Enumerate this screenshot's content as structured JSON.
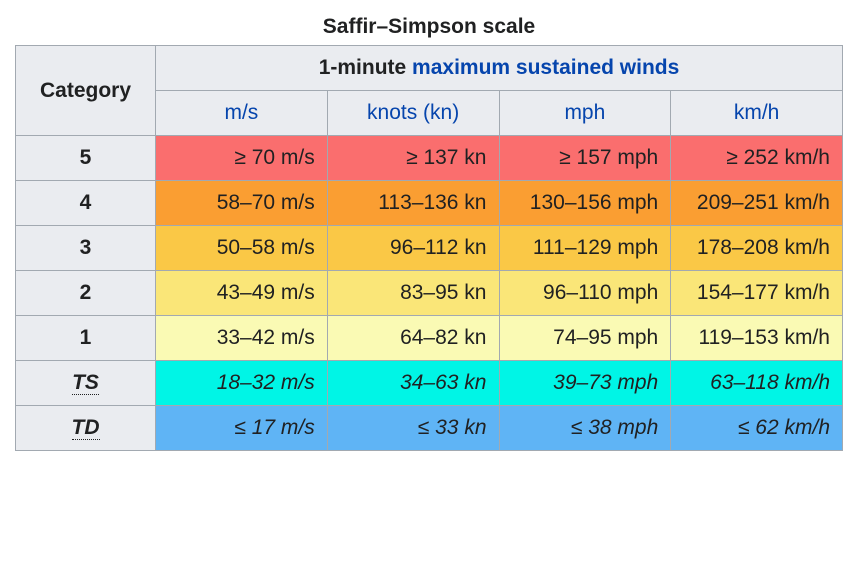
{
  "title": "Saffir–Simpson scale",
  "header": {
    "category": "Category",
    "main_prefix": "1-minute ",
    "main_link": "maximum sustained winds"
  },
  "unit_headers": [
    "m/s",
    "knots (kn)",
    "mph",
    "km/h"
  ],
  "colors": {
    "cat5": "#fa6e6e",
    "cat4": "#fa9e32",
    "cat3": "#fac846",
    "cat2": "#fae678",
    "cat1": "#fafab4",
    "ts": "#00f5e6",
    "td": "#5fb4f5",
    "header_bg": "#eaecf0",
    "border": "#a2a9b1",
    "text": "#202122",
    "link": "#0645ad"
  },
  "rows": [
    {
      "label": "5",
      "color_key": "cat5",
      "italic": false,
      "dotted": false,
      "values": [
        "≥ 70 m/s",
        "≥ 137 kn",
        "≥ 157 mph",
        "≥ 252 km/h"
      ]
    },
    {
      "label": "4",
      "color_key": "cat4",
      "italic": false,
      "dotted": false,
      "values": [
        "58–70 m/s",
        "113–136 kn",
        "130–156 mph",
        "209–251 km/h"
      ]
    },
    {
      "label": "3",
      "color_key": "cat3",
      "italic": false,
      "dotted": false,
      "values": [
        "50–58 m/s",
        "96–112 kn",
        "111–129 mph",
        "178–208 km/h"
      ]
    },
    {
      "label": "2",
      "color_key": "cat2",
      "italic": false,
      "dotted": false,
      "values": [
        "43–49 m/s",
        "83–95 kn",
        "96–110 mph",
        "154–177 km/h"
      ]
    },
    {
      "label": "1",
      "color_key": "cat1",
      "italic": false,
      "dotted": false,
      "values": [
        "33–42 m/s",
        "64–82 kn",
        "74–95 mph",
        "119–153 km/h"
      ]
    },
    {
      "label": "TS",
      "color_key": "ts",
      "italic": true,
      "dotted": true,
      "values": [
        "18–32 m/s",
        "34–63 kn",
        "39–73 mph",
        "63–118 km/h"
      ]
    },
    {
      "label": "TD",
      "color_key": "td",
      "italic": true,
      "dotted": true,
      "values": [
        "≤ 17 m/s",
        "≤ 33 kn",
        "≤ 38 mph",
        "≤ 62 km/h"
      ]
    }
  ]
}
